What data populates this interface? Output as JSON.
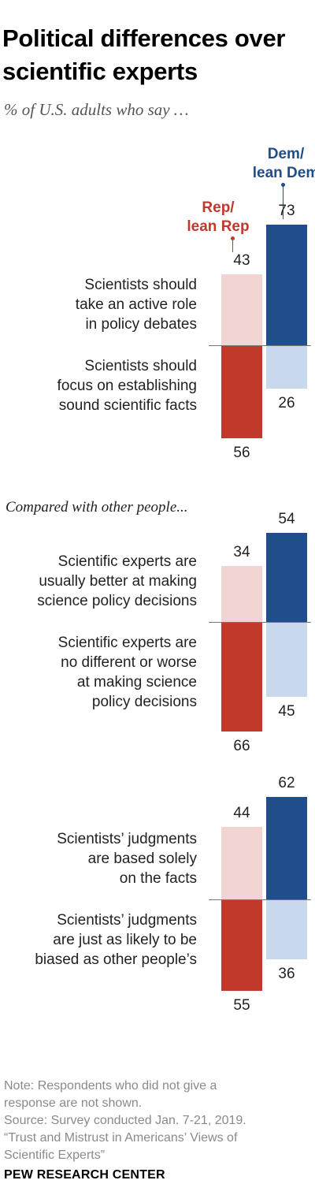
{
  "title": "Political differences over scientific experts",
  "subtitle": "% of U.S. adults who say …",
  "colors": {
    "rep_dark": "#c0392b",
    "rep_light": "#f2d4d2",
    "dem_dark": "#1f4e8a",
    "dem_light": "#c8d9ee"
  },
  "chart_data": {
    "type": "bar",
    "series": [
      {
        "name": "Rep/ lean Rep"
      },
      {
        "name": "Dem/ lean Dem"
      }
    ],
    "groups": [
      {
        "intro": "",
        "top": {
          "label": "Scientists should take an active role in policy debates",
          "rep": 43,
          "dem": 73
        },
        "bottom": {
          "label": "Scientists should focus on establishing sound scientific facts",
          "rep": 56,
          "dem": 26
        }
      },
      {
        "intro": "Compared with other people...",
        "top": {
          "label": "Scientific experts are usually better at making science policy decisions",
          "rep": 34,
          "dem": 54
        },
        "bottom": {
          "label": "Scientific experts are no different or worse at making science policy decisions",
          "rep": 66,
          "dem": 45
        }
      },
      {
        "intro": "",
        "top": {
          "label": "Scientists’ judgments are based solely on the facts",
          "rep": 44,
          "dem": 62
        },
        "bottom": {
          "label": "Scientists’ judgments are just as likely to be biased as other people’s",
          "rep": 55,
          "dem": 36
        }
      }
    ]
  },
  "legend": {
    "rep_line1": "Rep/",
    "rep_line2": "lean Rep",
    "dem_line1": "Dem/",
    "dem_line2": "lean Dem"
  },
  "notes": {
    "note_line1": "Note: Respondents who did not give a",
    "note_line2": "response are not shown.",
    "source_line1": "Source: Survey conducted Jan. 7-21, 2019.",
    "source_line2": "“Trust and Mistrust in Americans’ Views of",
    "source_line3": "Scientific Experts”"
  },
  "brand": "PEW RESEARCH CENTER"
}
